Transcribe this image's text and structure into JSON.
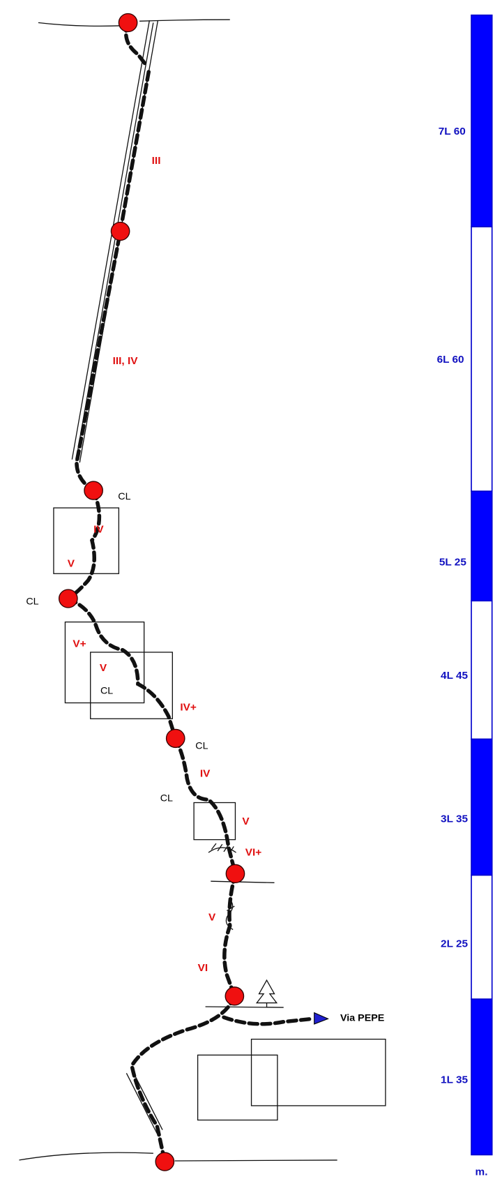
{
  "scale_bar": {
    "pitches": [
      "7L 60",
      "6L 60",
      "5L 25",
      "4L 45",
      "3L 35",
      "2L 25",
      "1L 35"
    ],
    "unit": "m."
  },
  "grades": [
    "III",
    "III, IV",
    "IV",
    "V",
    "V+",
    "V",
    "IV+",
    "IV",
    "V",
    "VI+",
    "V",
    "VI"
  ],
  "belay_labels": [
    "CL",
    "CL",
    "CL",
    "CL",
    "CL"
  ],
  "route_link": "Via PEPE"
}
